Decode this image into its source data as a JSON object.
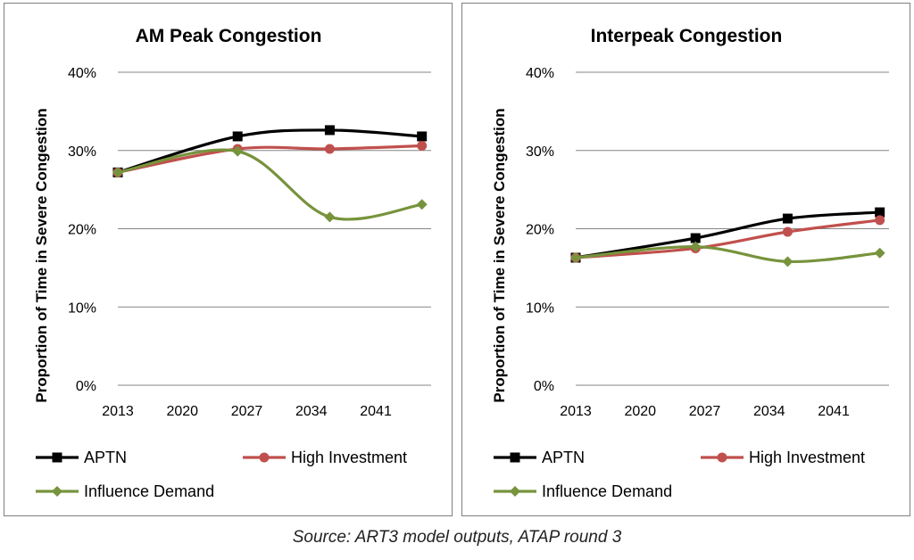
{
  "chart_data": [
    {
      "type": "line",
      "title": "AM Peak Congestion",
      "xlabel": "",
      "ylabel": "Proportion of Time in Severe Congestion",
      "x_ticks": [
        "2013",
        "2020",
        "2027",
        "2034",
        "2041"
      ],
      "y_ticks": [
        "0%",
        "10%",
        "20%",
        "30%",
        "40%"
      ],
      "xlim": [
        2013,
        2047
      ],
      "ylim": [
        0,
        40
      ],
      "grid": true,
      "legend": "bottom",
      "series": [
        {
          "name": "APTN",
          "color": "#000000",
          "marker": "square",
          "points": [
            [
              2013,
              27.2
            ],
            [
              2026,
              31.8
            ],
            [
              2036,
              32.6
            ],
            [
              2046,
              31.8
            ]
          ]
        },
        {
          "name": "High Investment",
          "color": "#c0504d",
          "marker": "circle",
          "points": [
            [
              2013,
              27.2
            ],
            [
              2026,
              30.2
            ],
            [
              2036,
              30.2
            ],
            [
              2046,
              30.6
            ]
          ]
        },
        {
          "name": "Influence Demand",
          "color": "#77933c",
          "marker": "diamond",
          "points": [
            [
              2013,
              27.2
            ],
            [
              2026,
              29.9
            ],
            [
              2036,
              21.5
            ],
            [
              2046,
              23.1
            ]
          ]
        }
      ]
    },
    {
      "type": "line",
      "title": "Interpeak Congestion",
      "xlabel": "",
      "ylabel": "Proportion of Time in Severe Congestion",
      "x_ticks": [
        "2013",
        "2020",
        "2027",
        "2034",
        "2041"
      ],
      "y_ticks": [
        "0%",
        "10%",
        "20%",
        "30%",
        "40%"
      ],
      "xlim": [
        2013,
        2047
      ],
      "ylim": [
        0,
        40
      ],
      "grid": true,
      "legend": "bottom",
      "series": [
        {
          "name": "APTN",
          "color": "#000000",
          "marker": "square",
          "points": [
            [
              2013,
              16.3
            ],
            [
              2026,
              18.8
            ],
            [
              2036,
              21.3
            ],
            [
              2046,
              22.1
            ]
          ]
        },
        {
          "name": "High Investment",
          "color": "#c0504d",
          "marker": "circle",
          "points": [
            [
              2013,
              16.3
            ],
            [
              2026,
              17.5
            ],
            [
              2036,
              19.6
            ],
            [
              2046,
              21.1
            ]
          ]
        },
        {
          "name": "Influence Demand",
          "color": "#77933c",
          "marker": "diamond",
          "points": [
            [
              2013,
              16.3
            ],
            [
              2026,
              17.7
            ],
            [
              2036,
              15.8
            ],
            [
              2046,
              16.9
            ]
          ]
        }
      ]
    }
  ],
  "caption": "Source: ART3 model outputs, ATAP round 3"
}
